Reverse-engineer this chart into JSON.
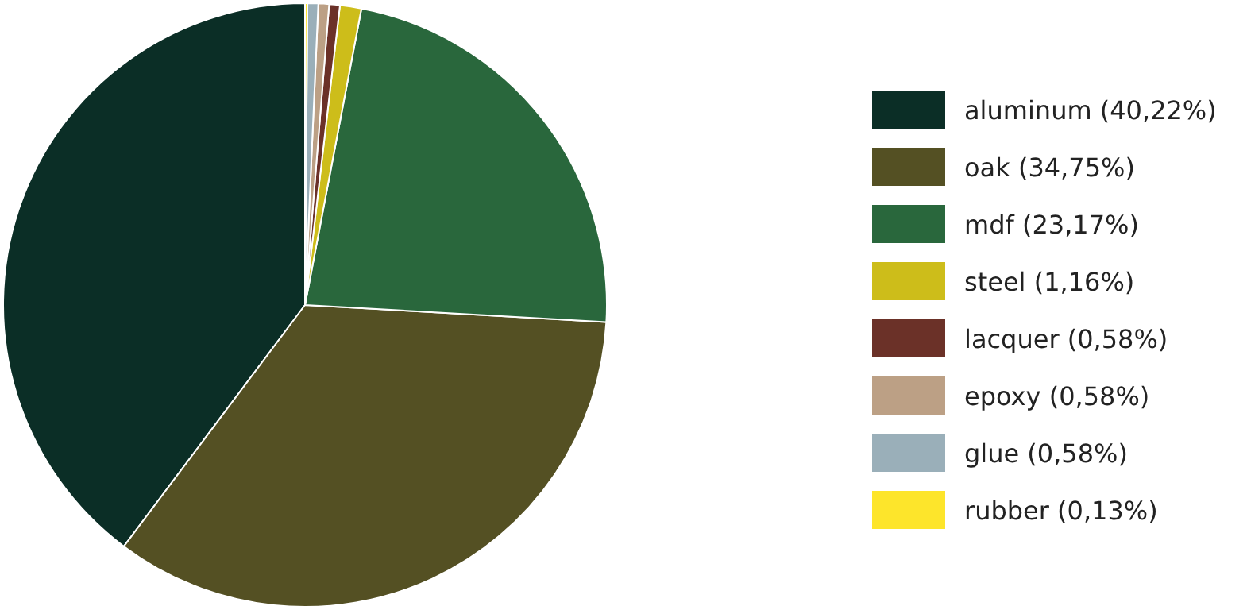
{
  "chart_data": {
    "type": "pie",
    "categories": [
      "aluminum (40,22%)",
      "oak (34,75%)",
      "mdf (23,17%)",
      "steel (1,16%)",
      "lacquer (0,58%)",
      "epoxy (0,58%)",
      "glue (0,58%)",
      "rubber (0,13%)"
    ],
    "values": [
      40.22,
      34.75,
      23.17,
      1.16,
      0.58,
      0.58,
      0.58,
      0.13
    ],
    "colors": [
      "#0b2e26",
      "#545023",
      "#29673c",
      "#cdbd1a",
      "#6b3128",
      "#bca085",
      "#9aafb9",
      "#fde52b"
    ],
    "legend": "right"
  }
}
